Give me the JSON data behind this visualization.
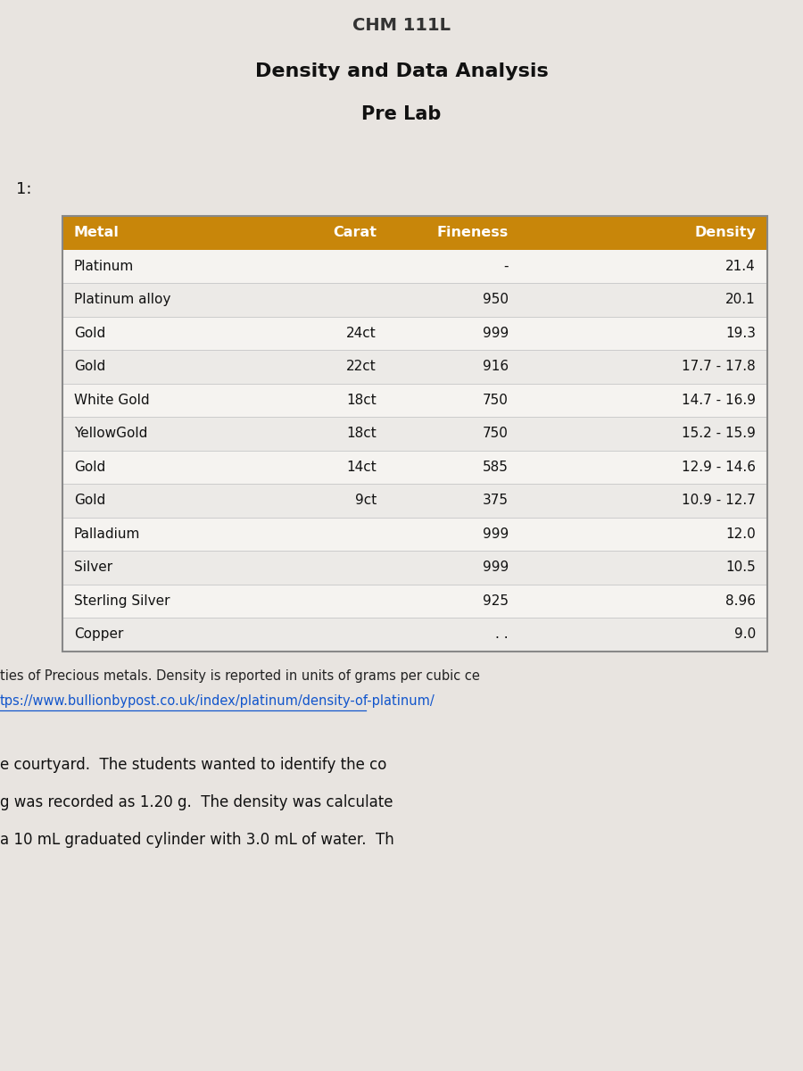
{
  "page_title_top": "CHM 111L",
  "title1": "Density and Data Analysis",
  "title2": "Pre Lab",
  "section_label": "1:",
  "header_bg_color": "#C8860A",
  "header_text_color": "#FFFFFF",
  "table_border_color": "#888888",
  "row_line_color": "#CCCCCC",
  "headers": [
    "Metal",
    "Carat",
    "Fineness",
    "Density"
  ],
  "rows": [
    [
      "Platinum",
      "",
      "-",
      "21.4"
    ],
    [
      "Platinum alloy",
      "",
      "950",
      "20.1"
    ],
    [
      "Gold",
      "24ct",
      "999",
      "19.3"
    ],
    [
      "Gold",
      "22ct",
      "916",
      "17.7 - 17.8"
    ],
    [
      "White Gold",
      "18ct",
      "750",
      "14.7 - 16.9"
    ],
    [
      "YellowGold",
      "18ct",
      "750",
      "15.2 - 15.9"
    ],
    [
      "Gold",
      "14ct",
      "585",
      "12.9 - 14.6"
    ],
    [
      "Gold",
      "9ct",
      "375",
      "10.9 - 12.7"
    ],
    [
      "Palladium",
      "",
      "999",
      "12.0"
    ],
    [
      "Silver",
      "",
      "999",
      "10.5"
    ],
    [
      "Sterling Silver",
      "",
      "925",
      "8.96"
    ],
    [
      "Copper",
      "",
      ". .",
      "9.0"
    ]
  ],
  "footnote1": "ties of Precious metals. Density is reported in units of grams per cubic ce",
  "footnote2": "tps://www.bullionbypost.co.uk/index/platinum/density-of-platinum/",
  "para1": "e courtyard.  The students wanted to identify the co",
  "para2": "g was recorded as 1.20 g.  The density was calculate",
  "para3": "a 10 mL graduated cylinder with 3.0 mL of water.  Th",
  "bg_color": "#E8E4E0"
}
